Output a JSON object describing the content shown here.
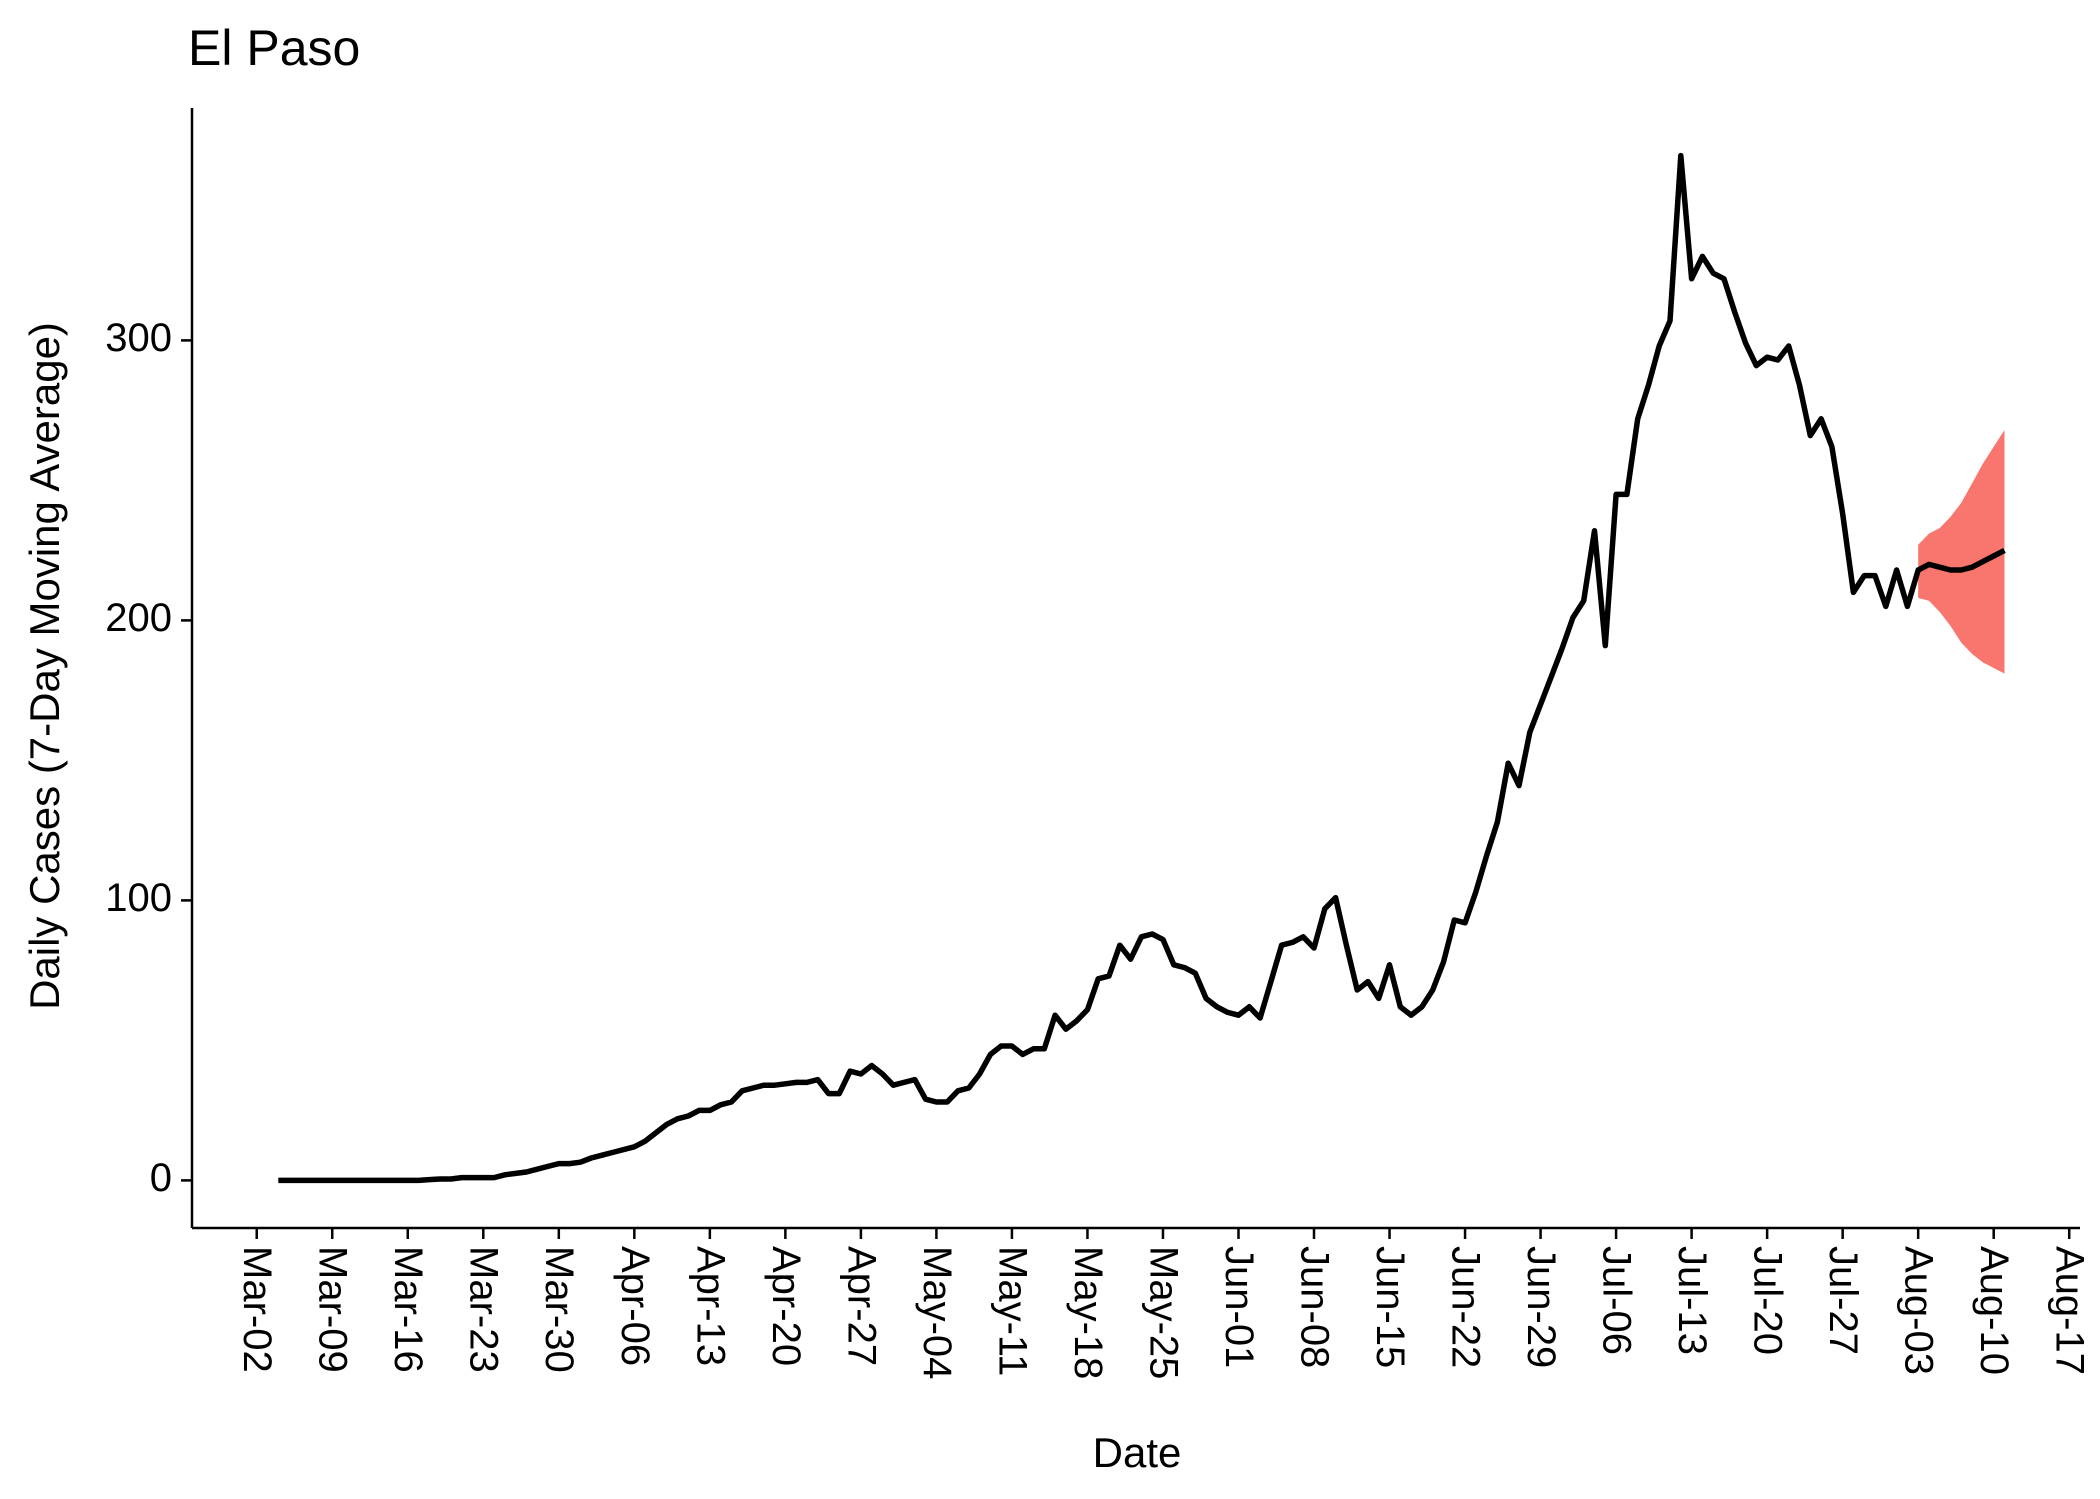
{
  "chart_data": {
    "type": "line",
    "title": "El Paso",
    "x_label": "Date",
    "y_label": "Daily Cases (7-Day Moving Average)",
    "color": "#000000",
    "x": [
      "Mar-04",
      "Mar-05",
      "Mar-06",
      "Mar-07",
      "Mar-08",
      "Mar-09",
      "Mar-10",
      "Mar-11",
      "Mar-12",
      "Mar-13",
      "Mar-14",
      "Mar-15",
      "Mar-16",
      "Mar-17",
      "Mar-18",
      "Mar-19",
      "Mar-20",
      "Mar-21",
      "Mar-22",
      "Mar-23",
      "Mar-24",
      "Mar-25",
      "Mar-26",
      "Mar-27",
      "Mar-28",
      "Mar-29",
      "Mar-30",
      "Mar-31",
      "Apr-01",
      "Apr-02",
      "Apr-03",
      "Apr-04",
      "Apr-05",
      "Apr-06",
      "Apr-07",
      "Apr-08",
      "Apr-09",
      "Apr-10",
      "Apr-11",
      "Apr-12",
      "Apr-13",
      "Apr-14",
      "Apr-15",
      "Apr-16",
      "Apr-17",
      "Apr-18",
      "Apr-19",
      "Apr-20",
      "Apr-21",
      "Apr-22",
      "Apr-23",
      "Apr-24",
      "Apr-25",
      "Apr-26",
      "Apr-27",
      "Apr-28",
      "Apr-29",
      "Apr-30",
      "May-01",
      "May-02",
      "May-03",
      "May-04",
      "May-05",
      "May-06",
      "May-07",
      "May-08",
      "May-09",
      "May-10",
      "May-11",
      "May-12",
      "May-13",
      "May-14",
      "May-15",
      "May-16",
      "May-17",
      "May-18",
      "May-19",
      "May-20",
      "May-21",
      "May-22",
      "May-23",
      "May-24",
      "May-25",
      "May-26",
      "May-27",
      "May-28",
      "May-29",
      "May-30",
      "May-31",
      "Jun-01",
      "Jun-02",
      "Jun-03",
      "Jun-04",
      "Jun-05",
      "Jun-06",
      "Jun-07",
      "Jun-08",
      "Jun-09",
      "Jun-10",
      "Jun-11",
      "Jun-12",
      "Jun-13",
      "Jun-14",
      "Jun-15",
      "Jun-16",
      "Jun-17",
      "Jun-18",
      "Jun-19",
      "Jun-20",
      "Jun-21",
      "Jun-22",
      "Jun-23",
      "Jun-24",
      "Jun-25",
      "Jun-26",
      "Jun-27",
      "Jun-28",
      "Jun-29",
      "Jun-30",
      "Jul-01",
      "Jul-02",
      "Jul-03",
      "Jul-04",
      "Jul-05",
      "Jul-06",
      "Jul-07",
      "Jul-08",
      "Jul-09",
      "Jul-10",
      "Jul-11",
      "Jul-12",
      "Jul-13",
      "Jul-14",
      "Jul-15",
      "Jul-16",
      "Jul-17",
      "Jul-18",
      "Jul-19",
      "Jul-20",
      "Jul-21",
      "Jul-22",
      "Jul-23",
      "Jul-24",
      "Jul-25",
      "Jul-26",
      "Jul-27",
      "Jul-28",
      "Jul-29",
      "Jul-30",
      "Jul-31",
      "Aug-01",
      "Aug-02",
      "Aug-03",
      "Aug-04",
      "Aug-05",
      "Aug-06",
      "Aug-07",
      "Aug-08",
      "Aug-09",
      "Aug-10",
      "Aug-11"
    ],
    "values": [
      0,
      0,
      0,
      0,
      0,
      0,
      0,
      0,
      0,
      0,
      0,
      0,
      0,
      0,
      0.3,
      0.5,
      0.5,
      1,
      1,
      1,
      1,
      2,
      2.5,
      3,
      4,
      5,
      6,
      6,
      6.5,
      8,
      9,
      10,
      11,
      12,
      14,
      17,
      20,
      22,
      23,
      25,
      25,
      27,
      28,
      32,
      33,
      34,
      34,
      34.5,
      35,
      35,
      36,
      31,
      31,
      39,
      38,
      41,
      38,
      34,
      35,
      36,
      29,
      28,
      28,
      32,
      33,
      38,
      45,
      48,
      48,
      45,
      47,
      47,
      59,
      54,
      57,
      61,
      72,
      73,
      84,
      79,
      87,
      88,
      86,
      77,
      76,
      74,
      65,
      62,
      60,
      59,
      62,
      58,
      71,
      84,
      85,
      87,
      83,
      97,
      101,
      84,
      68,
      71,
      65,
      77,
      62,
      59,
      62,
      68,
      78,
      93,
      92,
      103,
      116,
      128,
      149,
      141,
      160,
      170,
      180,
      190,
      201,
      207,
      232,
      191,
      245,
      245,
      272,
      284,
      298,
      307,
      366,
      322,
      330,
      324,
      322,
      310,
      299,
      291,
      294,
      293,
      298,
      284,
      266,
      272,
      262,
      238,
      210,
      216,
      216,
      205,
      218,
      205,
      218,
      220,
      219,
      218,
      218,
      219,
      221,
      223,
      225
    ],
    "ribbon": {
      "color": "#f8766d",
      "x": [
        "Aug-03",
        "Aug-04",
        "Aug-05",
        "Aug-06",
        "Aug-07",
        "Aug-08",
        "Aug-09",
        "Aug-10",
        "Aug-11"
      ],
      "lower": [
        208,
        207,
        203,
        198,
        192,
        188,
        185,
        183,
        181
      ],
      "upper": [
        227,
        231,
        233,
        237,
        242,
        249,
        256,
        262,
        268
      ]
    },
    "xlim": [
      "Feb-25",
      "Aug-18"
    ],
    "xticks": [
      "Mar-02",
      "Mar-09",
      "Mar-16",
      "Mar-23",
      "Mar-30",
      "Apr-06",
      "Apr-13",
      "Apr-20",
      "Apr-27",
      "May-04",
      "May-11",
      "May-18",
      "May-25",
      "Jun-01",
      "Jun-08",
      "Jun-15",
      "Jun-22",
      "Jun-29",
      "Jul-06",
      "Jul-13",
      "Jul-20",
      "Jul-27",
      "Aug-03",
      "Aug-10",
      "Aug-17"
    ],
    "ylim": [
      -17,
      383
    ],
    "yticks": [
      0,
      100,
      200,
      300
    ],
    "grid": false
  }
}
